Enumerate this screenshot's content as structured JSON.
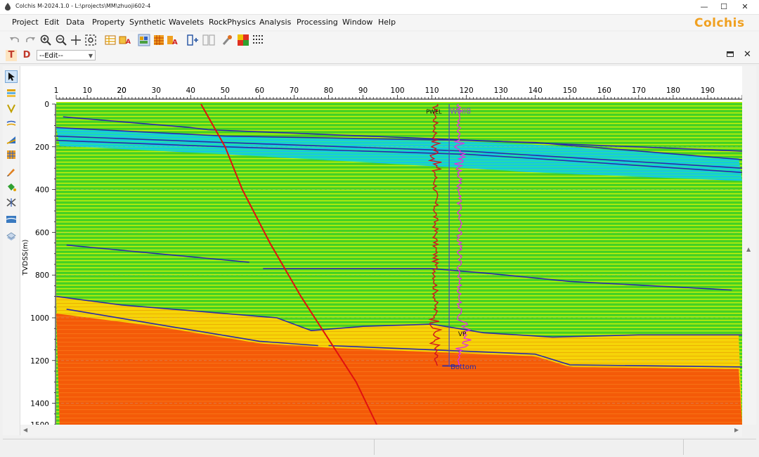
{
  "window": {
    "title": "Colchis M-2024.1.0 - L:\\projects\\MM\\zhuoji602-4",
    "minimize": "—",
    "maximize": "☐",
    "close": "✕"
  },
  "brand": "Colchis",
  "menu": [
    "Project",
    "Edit",
    "Data",
    "Property",
    "Synthetic",
    "Wavelets",
    "RockPhysics",
    "Analysis",
    "Processing",
    "Window",
    "Help"
  ],
  "panel": {
    "t_button": "T",
    "d_button": "D",
    "edit_select": "--Edit--",
    "close": "✕"
  },
  "colors": {
    "horizon": "#2a2aa8",
    "well_path": "#e01010",
    "log_pwel": "#d01020",
    "log_vp": "#e030e0",
    "accent": "#f0a020"
  },
  "chart_data": {
    "type": "heatmap",
    "ylabel": "TVDSS(m)",
    "x_ticks": [
      "1",
      "10",
      "20",
      "30",
      "40",
      "50",
      "60",
      "70",
      "80",
      "90",
      "100",
      "110",
      "120",
      "130",
      "140",
      "150",
      "160",
      "170",
      "180",
      "190",
      "20"
    ],
    "xlim": [
      1,
      200
    ],
    "y_ticks": [
      "0",
      "200",
      "400",
      "600",
      "800",
      "1000",
      "1200",
      "1400",
      "1500"
    ],
    "ylim": [
      0,
      1500
    ],
    "well_name": "Well8",
    "log_labels": {
      "pwel": "PWEL",
      "vp": "VP",
      "bottom": "Bottom"
    },
    "horizons": [
      {
        "points": [
          [
            3,
            60
          ],
          [
            40,
            110
          ],
          [
            45,
            120
          ],
          [
            200,
            220
          ]
        ]
      },
      {
        "points": [
          [
            1,
            110
          ],
          [
            50,
            150
          ],
          [
            120,
            170
          ],
          [
            140,
            180
          ],
          [
            200,
            260
          ]
        ]
      },
      {
        "points": [
          [
            1,
            150
          ],
          [
            50,
            180
          ],
          [
            120,
            220
          ],
          [
            140,
            240
          ],
          [
            200,
            300
          ]
        ]
      },
      {
        "points": [
          [
            1,
            170
          ],
          [
            50,
            200
          ],
          [
            120,
            235
          ],
          [
            140,
            255
          ],
          [
            200,
            320
          ]
        ]
      },
      {
        "points": [
          [
            4,
            660
          ],
          [
            57,
            740
          ]
        ]
      },
      {
        "points": [
          [
            61,
            770
          ],
          [
            110,
            770
          ],
          [
            125,
            790
          ],
          [
            150,
            830
          ],
          [
            197,
            870
          ]
        ]
      },
      {
        "points": [
          [
            1,
            900
          ],
          [
            20,
            940
          ],
          [
            50,
            980
          ],
          [
            65,
            1000
          ],
          [
            75,
            1060
          ],
          [
            90,
            1040
          ],
          [
            110,
            1030
          ],
          [
            125,
            1070
          ],
          [
            145,
            1090
          ],
          [
            170,
            1080
          ],
          [
            200,
            1080
          ]
        ]
      },
      {
        "points": [
          [
            4,
            960
          ],
          [
            30,
            1030
          ],
          [
            60,
            1110
          ],
          [
            77,
            1130
          ]
        ]
      },
      {
        "points": [
          [
            80,
            1130
          ],
          [
            110,
            1150
          ],
          [
            125,
            1160
          ],
          [
            140,
            1170
          ],
          [
            150,
            1220
          ],
          [
            200,
            1230
          ]
        ]
      },
      {
        "points": [
          [
            113,
            1225
          ],
          [
            118,
            1225
          ]
        ]
      }
    ],
    "well_path": [
      [
        43,
        0
      ],
      [
        50,
        200
      ],
      [
        55,
        400
      ],
      [
        63,
        650
      ],
      [
        72,
        900
      ],
      [
        80,
        1100
      ],
      [
        88,
        1300
      ],
      [
        94,
        1500
      ]
    ],
    "pwel_track_x": 111,
    "vp_track_x": 118,
    "well_marker_x": 115
  }
}
